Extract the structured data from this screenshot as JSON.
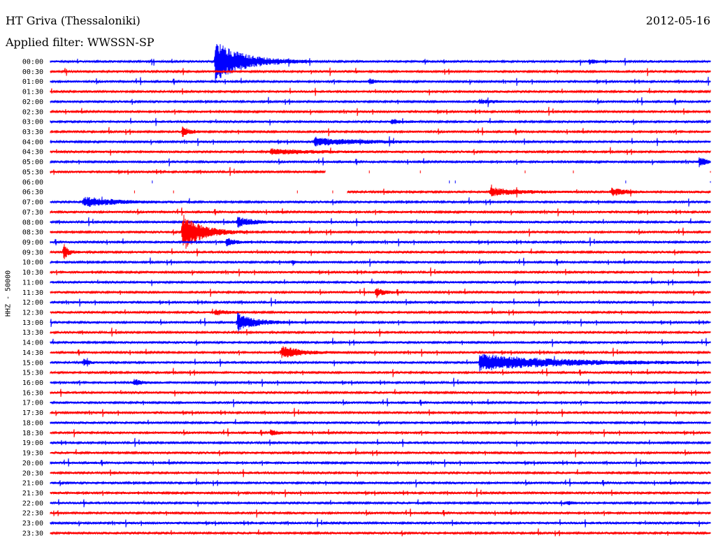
{
  "header": {
    "station": "HT Griva (Thessaloniki)",
    "date": "2012-05-16",
    "filter": "Applied filter: WWSSN-SP"
  },
  "channel": "HHZ - 50000",
  "colors": {
    "odd_trace": "#0000ff",
    "even_trace": "#ff0000"
  },
  "chart_data": {
    "type": "line",
    "title": "HT Griva (Thessaloniki)",
    "subtitle": "Applied filter: WWSSN-SP",
    "ylabel": "HHZ - 50000",
    "time_labels": [
      "00:00",
      "00:30",
      "01:00",
      "01:30",
      "02:00",
      "02:30",
      "03:00",
      "03:30",
      "04:00",
      "04:30",
      "05:00",
      "05:30",
      "06:00",
      "06:30",
      "07:00",
      "07:30",
      "08:00",
      "08:30",
      "09:00",
      "09:30",
      "10:00",
      "10:30",
      "11:00",
      "11:30",
      "12:00",
      "12:30",
      "13:00",
      "13:30",
      "14:00",
      "14:30",
      "15:00",
      "15:30",
      "16:00",
      "16:30",
      "17:00",
      "17:30",
      "18:00",
      "18:30",
      "19:00",
      "19:30",
      "20:00",
      "20:30",
      "21:00",
      "21:30",
      "22:00",
      "22:30",
      "23:00",
      "23:30"
    ],
    "trace_minutes": 30,
    "events": [
      {
        "trace": "00:00",
        "minute": 7.5,
        "amplitude": 30,
        "duration": 2.2
      },
      {
        "trace": "00:00",
        "minute": 24.5,
        "amplitude": 3,
        "duration": 0.6
      },
      {
        "trace": "01:00",
        "minute": 14.5,
        "amplitude": 4,
        "duration": 0.5
      },
      {
        "trace": "02:00",
        "minute": 19.5,
        "amplitude": 3,
        "duration": 1.0
      },
      {
        "trace": "03:00",
        "minute": 15.5,
        "amplitude": 4,
        "duration": 0.6
      },
      {
        "trace": "03:30",
        "minute": 6.0,
        "amplitude": 8,
        "duration": 0.5
      },
      {
        "trace": "04:00",
        "minute": 12.0,
        "amplitude": 5,
        "duration": 4.0
      },
      {
        "trace": "04:30",
        "minute": 10.0,
        "amplitude": 4,
        "duration": 3.0
      },
      {
        "trace": "05:00",
        "minute": 29.5,
        "amplitude": 6,
        "duration": 0.6
      },
      {
        "trace": "06:30",
        "minute": 20.0,
        "amplitude": 6,
        "duration": 2.0
      },
      {
        "trace": "06:30",
        "minute": 25.5,
        "amplitude": 6,
        "duration": 1.0
      },
      {
        "trace": "07:00",
        "minute": 1.5,
        "amplitude": 7,
        "duration": 2.5
      },
      {
        "trace": "08:00",
        "minute": 8.5,
        "amplitude": 7,
        "duration": 1.2
      },
      {
        "trace": "08:30",
        "minute": 6.0,
        "amplitude": 28,
        "duration": 1.5
      },
      {
        "trace": "09:00",
        "minute": 8.0,
        "amplitude": 6,
        "duration": 0.6
      },
      {
        "trace": "09:30",
        "minute": 0.6,
        "amplitude": 10,
        "duration": 0.4
      },
      {
        "trace": "10:00",
        "minute": 11.0,
        "amplitude": 5,
        "duration": 0.2
      },
      {
        "trace": "11:30",
        "minute": 14.8,
        "amplitude": 8,
        "duration": 0.5
      },
      {
        "trace": "12:30",
        "minute": 7.5,
        "amplitude": 4,
        "duration": 0.8
      },
      {
        "trace": "13:00",
        "minute": 8.5,
        "amplitude": 12,
        "duration": 1.5
      },
      {
        "trace": "14:30",
        "minute": 10.5,
        "amplitude": 9,
        "duration": 1.5
      },
      {
        "trace": "15:00",
        "minute": 19.5,
        "amplitude": 12,
        "duration": 6.0
      },
      {
        "trace": "15:00",
        "minute": 1.5,
        "amplitude": 5,
        "duration": 0.4
      },
      {
        "trace": "16:00",
        "minute": 3.8,
        "amplitude": 4,
        "duration": 0.8
      },
      {
        "trace": "18:30",
        "minute": 10.0,
        "amplitude": 4,
        "duration": 0.6
      },
      {
        "trace": "22:00",
        "minute": 23.5,
        "amplitude": 3,
        "duration": 0.4
      }
    ],
    "gaps": [
      {
        "trace": "05:30",
        "from_minute": 12.5,
        "to_minute": 30
      },
      {
        "trace": "06:00",
        "from_minute": 0,
        "to_minute": 30
      },
      {
        "trace": "06:30",
        "from_minute": 0,
        "to_minute": 13.5
      }
    ],
    "grid": false
  }
}
